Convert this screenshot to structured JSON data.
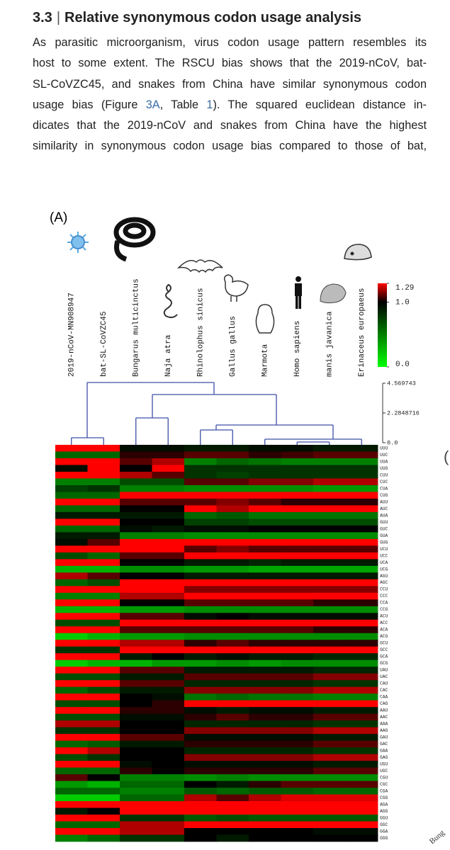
{
  "heading": {
    "number": "3.3",
    "separator": "|",
    "title": "Relative synonymous codon usage analysis"
  },
  "paragraph": {
    "lines": [
      "As parasitic microorganism, virus codon usage pattern resembles its",
      "host to some extent. The RSCU bias shows that the 2019-nCoV, bat-",
      "SL-CoVZC45, and snakes from China have similar synonymous codon"
    ],
    "line4": [
      "usage bias (Figure ",
      "3A",
      ", Table ",
      "1",
      "). The squared euclidean distance in-"
    ],
    "rest": [
      "dicates that the 2019-nCoV and snakes from China have the highest",
      "similarity in synonymous codon usage bias compared to those of bat,"
    ]
  },
  "edge_texts": {
    "next_panel": "(",
    "cut_label": "Bung"
  },
  "chart_data": {
    "type": "heatmap",
    "panel_label": "(A)",
    "columns": [
      "2019-nCoV-MN908947",
      "bat-SL-CoVZC45",
      "Bungarus multicinctus",
      "Naja atra",
      "Rhinolophus sinicus",
      "Gallus gallus",
      "Marmota",
      "Homo sapiens",
      "manis javanica",
      "Erinaceus europaeus"
    ],
    "rows": [
      "UUU",
      "UUC",
      "UUA",
      "UUG",
      "CUU",
      "CUC",
      "CUA",
      "CUG",
      "AUU",
      "AUC",
      "AUA",
      "GUU",
      "GUC",
      "GUA",
      "GUG",
      "UCU",
      "UCC",
      "UCA",
      "UCG",
      "AGU",
      "AGC",
      "CCU",
      "CCC",
      "CCA",
      "CCG",
      "ACU",
      "ACC",
      "ACA",
      "ACG",
      "GCU",
      "GCC",
      "GCA",
      "GCG",
      "UAU",
      "UAC",
      "CAU",
      "CAC",
      "CAA",
      "CAG",
      "AAU",
      "AAC",
      "AAA",
      "AAG",
      "GAU",
      "GAC",
      "GAA",
      "GAG",
      "UGU",
      "UGC",
      "CGU",
      "CGC",
      "CGA",
      "CGG",
      "AGA",
      "AGG",
      "GGU",
      "GGC",
      "GGA",
      "GGG"
    ],
    "values": [
      [
        1.4,
        1.4,
        0.95,
        0.95,
        0.9,
        0.9,
        0.95,
        0.95,
        0.9,
        0.9
      ],
      [
        0.6,
        0.6,
        1.05,
        1.05,
        1.1,
        1.1,
        1.05,
        1.07,
        1.1,
        1.1
      ],
      [
        1.5,
        1.5,
        1.1,
        1.2,
        0.5,
        0.6,
        0.55,
        0.5,
        0.5,
        0.5
      ],
      [
        0.95,
        1.3,
        1.0,
        1.3,
        0.8,
        0.8,
        0.8,
        0.8,
        0.8,
        0.8
      ],
      [
        1.6,
        1.4,
        1.2,
        1.1,
        0.8,
        0.75,
        0.8,
        0.8,
        0.8,
        0.8
      ],
      [
        0.5,
        0.5,
        0.7,
        0.7,
        1.1,
        1.1,
        1.15,
        1.15,
        1.2,
        1.2
      ],
      [
        0.75,
        0.8,
        0.5,
        0.5,
        0.45,
        0.45,
        0.45,
        0.45,
        0.4,
        0.4
      ],
      [
        0.6,
        0.6,
        1.3,
        1.3,
        2.0,
        2.0,
        2.2,
        2.3,
        2.4,
        2.4
      ],
      [
        1.5,
        1.5,
        1.1,
        1.1,
        1.1,
        1.15,
        1.1,
        1.05,
        1.05,
        1.05
      ],
      [
        0.6,
        0.6,
        1.0,
        1.0,
        1.3,
        1.2,
        1.4,
        1.4,
        1.4,
        1.4
      ],
      [
        0.9,
        0.9,
        0.9,
        0.9,
        0.6,
        0.65,
        0.55,
        0.55,
        0.55,
        0.55
      ],
      [
        1.5,
        1.4,
        1.0,
        1.0,
        0.75,
        0.75,
        0.7,
        0.7,
        0.7,
        0.7
      ],
      [
        0.6,
        0.6,
        0.95,
        0.9,
        0.95,
        0.95,
        1.0,
        1.0,
        1.0,
        1.0
      ],
      [
        0.9,
        0.9,
        0.5,
        0.5,
        0.45,
        0.45,
        0.45,
        0.45,
        0.45,
        0.45
      ],
      [
        0.95,
        1.1,
        1.5,
        1.5,
        1.8,
        1.8,
        1.85,
        1.85,
        1.9,
        1.9
      ],
      [
        1.6,
        1.5,
        1.3,
        1.3,
        1.1,
        1.15,
        1.1,
        1.1,
        1.1,
        1.1
      ],
      [
        0.7,
        0.6,
        1.1,
        1.1,
        1.3,
        1.3,
        1.3,
        1.3,
        1.35,
        1.35
      ],
      [
        1.6,
        1.5,
        1.0,
        1.0,
        0.9,
        0.9,
        0.85,
        0.9,
        0.9,
        0.9
      ],
      [
        0.3,
        0.3,
        0.45,
        0.45,
        0.4,
        0.4,
        0.35,
        0.35,
        0.35,
        0.35
      ],
      [
        1.2,
        1.1,
        1.0,
        1.0,
        0.9,
        0.9,
        0.9,
        0.9,
        0.9,
        0.9
      ],
      [
        0.6,
        0.7,
        1.3,
        1.3,
        1.4,
        1.4,
        1.45,
        1.45,
        1.5,
        1.5
      ],
      [
        1.6,
        1.6,
        1.3,
        1.3,
        1.15,
        1.15,
        1.15,
        1.15,
        1.15,
        1.15
      ],
      [
        0.5,
        0.5,
        1.2,
        1.2,
        1.3,
        1.3,
        1.3,
        1.3,
        1.35,
        1.35
      ],
      [
        1.5,
        1.4,
        1.0,
        1.0,
        1.1,
        1.1,
        1.1,
        1.1,
        1.05,
        1.05
      ],
      [
        0.3,
        0.3,
        0.4,
        0.4,
        0.45,
        0.45,
        0.45,
        0.45,
        0.45,
        0.45
      ],
      [
        1.6,
        1.5,
        1.1,
        1.1,
        0.95,
        1.0,
        0.95,
        0.95,
        0.95,
        0.95
      ],
      [
        0.7,
        0.7,
        1.3,
        1.3,
        1.4,
        1.4,
        1.45,
        1.45,
        1.5,
        1.5
      ],
      [
        1.5,
        1.4,
        1.1,
        1.1,
        1.1,
        1.1,
        1.1,
        1.1,
        1.05,
        1.05
      ],
      [
        0.2,
        0.3,
        0.4,
        0.4,
        0.45,
        0.45,
        0.45,
        0.45,
        0.45,
        0.45
      ],
      [
        1.7,
        1.6,
        1.2,
        1.2,
        1.05,
        1.1,
        1.05,
        1.05,
        1.05,
        1.05
      ],
      [
        0.8,
        0.8,
        1.4,
        1.3,
        1.6,
        1.5,
        1.6,
        1.6,
        1.65,
        1.65
      ],
      [
        1.3,
        1.3,
        0.9,
        1.0,
        0.9,
        0.95,
        0.9,
        0.9,
        0.85,
        0.85
      ],
      [
        0.2,
        0.3,
        0.3,
        0.4,
        0.4,
        0.45,
        0.4,
        0.45,
        0.45,
        0.45
      ],
      [
        1.3,
        1.3,
        1.1,
        1.1,
        0.9,
        0.9,
        0.9,
        0.9,
        0.85,
        0.85
      ],
      [
        0.7,
        0.7,
        0.9,
        0.9,
        1.1,
        1.1,
        1.1,
        1.1,
        1.15,
        1.15
      ],
      [
        1.4,
        1.3,
        1.1,
        1.1,
        0.85,
        0.85,
        0.85,
        0.85,
        0.8,
        0.8
      ],
      [
        0.6,
        0.7,
        0.9,
        0.9,
        1.15,
        1.15,
        1.15,
        1.15,
        1.2,
        1.2
      ],
      [
        1.3,
        1.3,
        1.0,
        0.95,
        0.55,
        0.6,
        0.55,
        0.55,
        0.5,
        0.5
      ],
      [
        0.7,
        0.7,
        1.0,
        1.05,
        1.45,
        1.4,
        1.45,
        1.45,
        1.5,
        1.5
      ],
      [
        1.3,
        1.3,
        1.05,
        1.05,
        0.95,
        0.9,
        0.95,
        0.95,
        0.9,
        0.9
      ],
      [
        0.7,
        0.7,
        0.95,
        0.95,
        1.05,
        1.1,
        1.05,
        1.05,
        1.1,
        1.1
      ],
      [
        1.2,
        1.2,
        1.0,
        1.0,
        0.85,
        0.85,
        0.85,
        0.85,
        0.8,
        0.8
      ],
      [
        0.8,
        0.8,
        1.0,
        1.0,
        1.15,
        1.15,
        1.15,
        1.15,
        1.2,
        1.2
      ],
      [
        1.4,
        1.35,
        1.1,
        1.1,
        0.95,
        0.95,
        0.95,
        0.95,
        0.9,
        0.9
      ],
      [
        0.6,
        0.65,
        0.9,
        0.9,
        1.05,
        1.05,
        1.05,
        1.05,
        1.1,
        1.1
      ],
      [
        1.3,
        1.2,
        1.0,
        1.0,
        0.85,
        0.85,
        0.85,
        0.85,
        0.8,
        0.8
      ],
      [
        0.7,
        0.8,
        1.0,
        1.0,
        1.15,
        1.15,
        1.15,
        1.15,
        1.2,
        1.2
      ],
      [
        1.4,
        1.4,
        0.95,
        1.0,
        0.95,
        0.95,
        0.95,
        0.95,
        0.9,
        0.9
      ],
      [
        0.6,
        0.6,
        1.05,
        1.0,
        1.05,
        1.05,
        1.05,
        1.05,
        1.1,
        1.1
      ],
      [
        1.1,
        1.0,
        0.5,
        0.5,
        0.45,
        0.5,
        0.45,
        0.45,
        0.45,
        0.45
      ],
      [
        0.4,
        0.3,
        0.6,
        0.6,
        1.0,
        0.9,
        1.05,
        1.1,
        1.1,
        1.1
      ],
      [
        0.6,
        0.6,
        0.5,
        0.5,
        0.65,
        0.6,
        0.65,
        0.65,
        0.6,
        0.6
      ],
      [
        0.2,
        0.2,
        0.6,
        0.6,
        1.2,
        1.1,
        1.2,
        1.25,
        1.25,
        1.25
      ],
      [
        2.8,
        2.9,
        2.0,
        2.0,
        1.4,
        1.4,
        1.3,
        1.3,
        1.3,
        1.3
      ],
      [
        0.9,
        1.0,
        1.6,
        1.6,
        1.3,
        1.4,
        1.3,
        1.3,
        1.3,
        1.3
      ],
      [
        1.6,
        1.5,
        0.8,
        0.8,
        0.65,
        0.7,
        0.65,
        0.65,
        0.65,
        0.65
      ],
      [
        0.6,
        0.6,
        1.2,
        1.2,
        1.35,
        1.4,
        1.35,
        1.35,
        1.4,
        1.4
      ],
      [
        1.3,
        1.3,
        1.2,
        1.2,
        1.0,
        1.0,
        1.0,
        1.0,
        0.95,
        0.95
      ],
      [
        0.5,
        0.6,
        0.8,
        0.8,
        1.0,
        0.9,
        1.0,
        1.0,
        1.0,
        1.0
      ]
    ],
    "clim": [
      0,
      1.29
    ],
    "color_stops": [
      {
        "value": 0,
        "color": "#00ff00"
      },
      {
        "value": 1,
        "color": "#000000"
      },
      {
        "value": 1.29,
        "color": "#ff0000"
      }
    ],
    "cticks": [
      {
        "value": 0,
        "label": "0.0"
      },
      {
        "value": 1,
        "label": "1.0"
      },
      1.29
    ],
    "dendrogram_lim": [
      0,
      4.569743
    ],
    "dendrogram_ticks": [
      {
        "value": 0,
        "label": "0.0"
      },
      2.2848716,
      4.569743
    ],
    "dendrogram_color": "#3f4fa8"
  }
}
